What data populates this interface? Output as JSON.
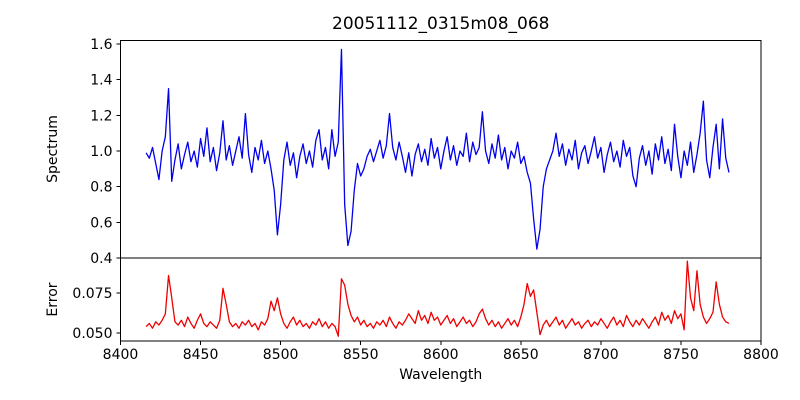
{
  "figure": {
    "title": "20051112_0315m08_068",
    "background_color": "#ffffff",
    "text_color": "#000000",
    "spine_color": "#000000"
  },
  "chart_data": {
    "type": "line",
    "title": "20051112_0315m08_068",
    "xlabel": "Wavelength",
    "xlim": [
      8400,
      8800
    ],
    "x_ticks": [
      8400,
      8450,
      8500,
      8550,
      8600,
      8650,
      8700,
      8750,
      8800
    ],
    "x_tick_labels": [
      "8400",
      "8450",
      "8500",
      "8550",
      "8600",
      "8650",
      "8700",
      "8750",
      "8800"
    ],
    "grid": false,
    "legend": null,
    "x_start": 8416,
    "x_step": 2,
    "panels": [
      {
        "name": "spectrum",
        "ylabel": "Spectrum",
        "line_color": "#0000ee",
        "ylim": [
          0.4,
          1.62
        ],
        "y_ticks": [
          0.4,
          0.6,
          0.8,
          1.0,
          1.2,
          1.4,
          1.6
        ],
        "y_tick_labels": [
          "0.4",
          "0.6",
          "0.8",
          "1.0",
          "1.2",
          "1.4",
          "1.6"
        ],
        "notable_features": [
          {
            "wavelength": 8430,
            "value": 1.35,
            "kind": "emission-spike"
          },
          {
            "wavelength": 8498,
            "value": 0.53,
            "kind": "absorption-dip"
          },
          {
            "wavelength": 8538,
            "value": 1.57,
            "kind": "emission-spike"
          },
          {
            "wavelength": 8542,
            "value": 0.47,
            "kind": "absorption-dip"
          },
          {
            "wavelength": 8660,
            "value": 0.45,
            "kind": "absorption-dip"
          }
        ],
        "values": [
          0.99,
          0.96,
          1.02,
          0.93,
          0.84,
          1.0,
          1.08,
          1.35,
          0.83,
          0.95,
          1.04,
          0.9,
          0.98,
          1.05,
          0.94,
          1.0,
          0.91,
          1.07,
          0.97,
          1.13,
          0.94,
          1.02,
          0.89,
          0.99,
          1.17,
          0.95,
          1.03,
          0.92,
          1.0,
          1.08,
          0.96,
          1.21,
          0.98,
          0.88,
          1.02,
          0.95,
          1.06,
          0.93,
          1.0,
          0.9,
          0.78,
          0.53,
          0.7,
          0.95,
          1.05,
          0.92,
          0.99,
          0.85,
          0.97,
          1.04,
          0.93,
          1.0,
          0.91,
          1.06,
          1.12,
          0.95,
          1.02,
          0.9,
          1.12,
          0.97,
          1.05,
          1.57,
          0.7,
          0.47,
          0.55,
          0.78,
          0.93,
          0.86,
          0.9,
          0.97,
          1.01,
          0.94,
          1.0,
          1.06,
          0.96,
          1.03,
          1.21,
          1.02,
          0.95,
          1.05,
          0.97,
          0.88,
          0.99,
          0.86,
          0.98,
          1.04,
          0.94,
          1.01,
          0.92,
          1.07,
          0.96,
          1.02,
          0.9,
          1.0,
          1.08,
          0.95,
          1.03,
          0.92,
          1.0,
          0.97,
          1.1,
          0.94,
          1.05,
          0.98,
          1.02,
          1.22,
          1.0,
          0.93,
          1.04,
          0.96,
          1.09,
          0.95,
          1.02,
          0.9,
          1.0,
          0.96,
          1.05,
          0.93,
          0.97,
          0.88,
          0.82,
          0.62,
          0.45,
          0.56,
          0.8,
          0.9,
          0.95,
          1.0,
          1.1,
          0.97,
          1.04,
          0.92,
          1.01,
          0.95,
          1.06,
          0.9,
          0.99,
          1.03,
          0.93,
          1.0,
          1.08,
          0.96,
          1.02,
          0.88,
          0.98,
          1.05,
          0.94,
          1.0,
          0.91,
          1.06,
          0.97,
          1.02,
          0.86,
          0.8,
          0.96,
          1.03,
          0.92,
          1.0,
          0.87,
          1.04,
          0.95,
          1.08,
          0.93,
          1.01,
          0.89,
          1.15,
          0.97,
          0.85,
          1.0,
          0.92,
          1.05,
          0.88,
          0.98,
          1.1,
          1.28,
          0.95,
          0.85,
          1.02,
          1.15,
          0.9,
          1.18,
          0.96,
          0.88
        ]
      },
      {
        "name": "error",
        "ylabel": "Error",
        "line_color": "#ee0000",
        "ylim": [
          0.045,
          0.097
        ],
        "y_ticks": [
          0.05,
          0.075
        ],
        "y_tick_labels": [
          "0.050",
          "0.075"
        ],
        "notable_features": [
          {
            "wavelength": 8430,
            "value": 0.086,
            "kind": "spike"
          },
          {
            "wavelength": 8538,
            "value": 0.084,
            "kind": "spike"
          },
          {
            "wavelength": 8654,
            "value": 0.081,
            "kind": "spike"
          },
          {
            "wavelength": 8754,
            "value": 0.095,
            "kind": "spike"
          },
          {
            "wavelength": 8760,
            "value": 0.089,
            "kind": "spike"
          }
        ],
        "values": [
          0.054,
          0.056,
          0.053,
          0.057,
          0.055,
          0.058,
          0.062,
          0.086,
          0.072,
          0.057,
          0.055,
          0.058,
          0.054,
          0.06,
          0.056,
          0.053,
          0.058,
          0.062,
          0.056,
          0.054,
          0.057,
          0.055,
          0.053,
          0.058,
          0.078,
          0.068,
          0.057,
          0.054,
          0.056,
          0.053,
          0.057,
          0.055,
          0.058,
          0.054,
          0.056,
          0.052,
          0.057,
          0.055,
          0.059,
          0.07,
          0.064,
          0.072,
          0.062,
          0.056,
          0.053,
          0.057,
          0.06,
          0.055,
          0.058,
          0.054,
          0.056,
          0.053,
          0.057,
          0.055,
          0.059,
          0.054,
          0.057,
          0.053,
          0.056,
          0.054,
          0.048,
          0.084,
          0.08,
          0.068,
          0.061,
          0.057,
          0.06,
          0.055,
          0.058,
          0.054,
          0.056,
          0.053,
          0.057,
          0.055,
          0.058,
          0.054,
          0.06,
          0.056,
          0.053,
          0.057,
          0.055,
          0.058,
          0.062,
          0.059,
          0.056,
          0.064,
          0.058,
          0.061,
          0.056,
          0.063,
          0.058,
          0.06,
          0.055,
          0.058,
          0.061,
          0.056,
          0.059,
          0.054,
          0.057,
          0.06,
          0.056,
          0.058,
          0.054,
          0.057,
          0.062,
          0.065,
          0.059,
          0.055,
          0.058,
          0.054,
          0.057,
          0.053,
          0.056,
          0.059,
          0.055,
          0.058,
          0.054,
          0.06,
          0.068,
          0.081,
          0.073,
          0.077,
          0.063,
          0.049,
          0.055,
          0.058,
          0.054,
          0.057,
          0.06,
          0.055,
          0.058,
          0.053,
          0.056,
          0.059,
          0.055,
          0.057,
          0.053,
          0.056,
          0.058,
          0.054,
          0.057,
          0.055,
          0.059,
          0.056,
          0.053,
          0.057,
          0.06,
          0.055,
          0.058,
          0.054,
          0.061,
          0.057,
          0.054,
          0.058,
          0.055,
          0.059,
          0.056,
          0.053,
          0.057,
          0.06,
          0.055,
          0.063,
          0.058,
          0.061,
          0.056,
          0.064,
          0.059,
          0.062,
          0.052,
          0.095,
          0.072,
          0.064,
          0.089,
          0.068,
          0.06,
          0.056,
          0.059,
          0.063,
          0.082,
          0.068,
          0.06,
          0.057,
          0.056
        ]
      }
    ]
  }
}
